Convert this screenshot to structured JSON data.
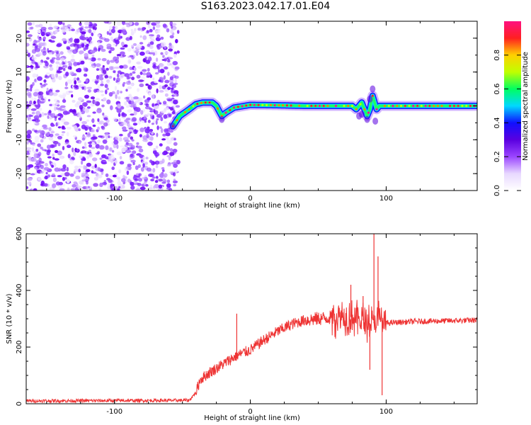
{
  "title": "S163.2023.042.17.01.E04",
  "chart_data": [
    {
      "type": "heatmap",
      "title": "S163.2023.042.17.01.E04",
      "xlabel": "Height of straight line (km)",
      "ylabel": "Frequency (Hz)",
      "xlim": [
        -165,
        167
      ],
      "ylim": [
        -25,
        25
      ],
      "xticks": [
        -100,
        0,
        100
      ],
      "yticks": [
        -20,
        -10,
        0,
        10,
        20
      ],
      "colorbar": {
        "label": "Normalized spectral amplitude",
        "range": [
          0,
          1
        ],
        "ticks": [
          "0.0",
          "0.2",
          "0.4",
          "0.6",
          "0.8"
        ],
        "colors": [
          "#ffffff",
          "#e8d8ff",
          "#9b45ff",
          "#5a00e0",
          "#1010ff",
          "#00d8ff",
          "#00ff60",
          "#c0ff00",
          "#ffd000",
          "#ff2020",
          "#ff1080"
        ]
      },
      "noise_region_x": [
        -165,
        -53
      ],
      "ridge": {
        "x": [
          -57,
          -52,
          -45,
          -40,
          -35,
          -28,
          -25,
          -21,
          -18,
          -12,
          0,
          20,
          40,
          60,
          75,
          78,
          82,
          86,
          88,
          90,
          93,
          95,
          100,
          130,
          167
        ],
        "hz": [
          -6,
          -3,
          -1,
          0.5,
          1,
          1,
          0,
          -3,
          -2,
          -0.5,
          0.3,
          0.2,
          0,
          0,
          0,
          -1,
          1,
          -3,
          -1,
          3,
          -1,
          0,
          0,
          0,
          0
        ]
      }
    },
    {
      "type": "line",
      "xlabel": "Height of straight line (km)",
      "ylabel": "SNR (10 * v/v)",
      "xlim": [
        -165,
        167
      ],
      "ylim": [
        0,
        600
      ],
      "xticks": [
        -100,
        0,
        100
      ],
      "yticks": [
        0,
        200,
        400,
        600
      ],
      "color": "#ee3333",
      "series_profile": {
        "x": [
          -165,
          -45,
          -40,
          -37,
          -30,
          -20,
          -10,
          0,
          10,
          20,
          30,
          40,
          50,
          60,
          70,
          80,
          90,
          95,
          100,
          120,
          167
        ],
        "y": [
          10,
          12,
          40,
          85,
          110,
          140,
          170,
          190,
          225,
          255,
          280,
          295,
          300,
          305,
          310,
          300,
          280,
          300,
          285,
          290,
          295
        ]
      },
      "spikes": [
        {
          "x": -10,
          "y": 318
        },
        {
          "x": 74,
          "y": 420
        },
        {
          "x": 83,
          "y": 380
        },
        {
          "x": 91,
          "y": 600
        },
        {
          "x": 94,
          "y": 520
        },
        {
          "x": 97,
          "y": 30
        },
        {
          "x": 88,
          "y": 120
        }
      ]
    }
  ]
}
